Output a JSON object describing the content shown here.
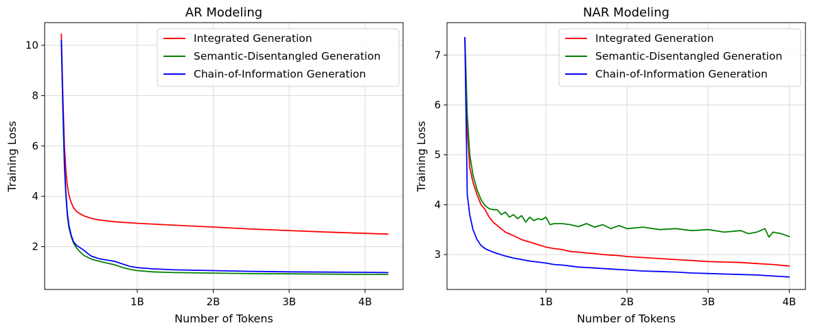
{
  "chart_data": [
    {
      "type": "line",
      "title": "AR Modeling",
      "xlabel": "Number of Tokens",
      "ylabel": "Training Loss",
      "xlim": [
        -0.22,
        4.5
      ],
      "ylim": [
        0.3,
        10.9
      ],
      "xticks": [
        1,
        2,
        3,
        4
      ],
      "xtick_labels": [
        "1B",
        "2B",
        "3B",
        "4B"
      ],
      "yticks": [
        2,
        4,
        6,
        8,
        10
      ],
      "ytick_labels": [
        "2",
        "4",
        "6",
        "8",
        "10"
      ],
      "grid": true,
      "legend_position": "top-right",
      "series": [
        {
          "name": "Integrated Generation",
          "color": "#ff0000",
          "x": [
            0.0,
            0.02,
            0.04,
            0.06,
            0.08,
            0.1,
            0.13,
            0.16,
            0.2,
            0.25,
            0.3,
            0.4,
            0.5,
            0.7,
            1.0,
            1.5,
            2.0,
            2.5,
            3.0,
            3.5,
            4.0,
            4.3
          ],
          "y": [
            10.45,
            8.0,
            6.0,
            5.0,
            4.4,
            4.05,
            3.75,
            3.55,
            3.4,
            3.3,
            3.22,
            3.12,
            3.06,
            2.99,
            2.93,
            2.85,
            2.78,
            2.7,
            2.64,
            2.58,
            2.53,
            2.5
          ]
        },
        {
          "name": "Semantic-Disentangled Generation",
          "color": "#008000",
          "x": [
            0.0,
            0.02,
            0.04,
            0.06,
            0.08,
            0.1,
            0.13,
            0.16,
            0.2,
            0.25,
            0.3,
            0.4,
            0.5,
            0.6,
            0.7,
            0.8,
            0.9,
            1.0,
            1.2,
            1.5,
            2.0,
            2.5,
            3.0,
            3.5,
            4.0,
            4.3
          ],
          "y": [
            10.2,
            7.5,
            5.2,
            4.0,
            3.2,
            2.75,
            2.4,
            2.15,
            1.95,
            1.78,
            1.65,
            1.5,
            1.42,
            1.35,
            1.28,
            1.18,
            1.1,
            1.05,
            1.0,
            0.97,
            0.95,
            0.93,
            0.92,
            0.91,
            0.9,
            0.9
          ]
        },
        {
          "name": "Chain-of-Information Generation",
          "color": "#0000ff",
          "x": [
            0.0,
            0.02,
            0.04,
            0.06,
            0.08,
            0.1,
            0.13,
            0.16,
            0.2,
            0.25,
            0.3,
            0.35,
            0.4,
            0.5,
            0.6,
            0.7,
            0.8,
            0.9,
            1.0,
            1.2,
            1.5,
            2.0,
            2.5,
            3.0,
            3.5,
            4.0,
            4.3
          ],
          "y": [
            10.2,
            7.8,
            5.4,
            4.1,
            3.3,
            2.85,
            2.45,
            2.2,
            2.05,
            1.95,
            1.85,
            1.72,
            1.62,
            1.52,
            1.47,
            1.42,
            1.32,
            1.22,
            1.17,
            1.12,
            1.08,
            1.05,
            1.02,
            1.0,
            0.99,
            0.98,
            0.97
          ]
        }
      ]
    },
    {
      "type": "line",
      "title": "NAR Modeling",
      "xlabel": "Number of Tokens",
      "ylabel": "Training Loss",
      "xlim": [
        -0.22,
        4.2
      ],
      "ylim": [
        2.3,
        7.65
      ],
      "xticks": [
        1,
        2,
        3,
        4
      ],
      "xtick_labels": [
        "1B",
        "2B",
        "3B",
        "4B"
      ],
      "yticks": [
        3,
        4,
        5,
        6,
        7
      ],
      "ytick_labels": [
        "3",
        "4",
        "5",
        "6",
        "7"
      ],
      "grid": true,
      "legend_position": "top-right",
      "series": [
        {
          "name": "Integrated Generation",
          "color": "#ff0000",
          "x": [
            0.0,
            0.03,
            0.06,
            0.1,
            0.15,
            0.2,
            0.25,
            0.3,
            0.35,
            0.4,
            0.5,
            0.6,
            0.7,
            0.8,
            0.9,
            1.0,
            1.1,
            1.2,
            1.3,
            1.4,
            1.5,
            1.6,
            1.7,
            1.8,
            1.9,
            2.0,
            2.2,
            2.4,
            2.6,
            2.8,
            3.0,
            3.2,
            3.4,
            3.6,
            3.8,
            4.0
          ],
          "y": [
            7.35,
            5.5,
            4.75,
            4.45,
            4.2,
            4.0,
            3.9,
            3.75,
            3.65,
            3.58,
            3.45,
            3.38,
            3.3,
            3.25,
            3.2,
            3.15,
            3.12,
            3.1,
            3.06,
            3.05,
            3.03,
            3.02,
            3.0,
            2.99,
            2.98,
            2.96,
            2.94,
            2.92,
            2.9,
            2.88,
            2.86,
            2.85,
            2.84,
            2.82,
            2.8,
            2.77
          ]
        },
        {
          "name": "Semantic-Disentangled Generation",
          "color": "#008000",
          "x": [
            0.0,
            0.03,
            0.06,
            0.1,
            0.15,
            0.2,
            0.25,
            0.3,
            0.35,
            0.4,
            0.45,
            0.5,
            0.55,
            0.6,
            0.65,
            0.7,
            0.75,
            0.8,
            0.85,
            0.9,
            0.95,
            1.0,
            1.05,
            1.1,
            1.2,
            1.3,
            1.4,
            1.5,
            1.6,
            1.7,
            1.8,
            1.9,
            2.0,
            2.2,
            2.4,
            2.6,
            2.8,
            3.0,
            3.2,
            3.4,
            3.5,
            3.6,
            3.7,
            3.75,
            3.8,
            3.9,
            4.0
          ],
          "y": [
            7.35,
            5.8,
            5.0,
            4.6,
            4.3,
            4.1,
            3.98,
            3.92,
            3.9,
            3.9,
            3.8,
            3.85,
            3.75,
            3.8,
            3.72,
            3.78,
            3.65,
            3.75,
            3.68,
            3.72,
            3.7,
            3.75,
            3.6,
            3.62,
            3.62,
            3.6,
            3.56,
            3.62,
            3.55,
            3.6,
            3.52,
            3.58,
            3.52,
            3.55,
            3.5,
            3.52,
            3.48,
            3.5,
            3.45,
            3.48,
            3.42,
            3.45,
            3.52,
            3.35,
            3.45,
            3.42,
            3.36
          ]
        },
        {
          "name": "Chain-of-Information Generation",
          "color": "#0000ff",
          "x": [
            0.0,
            0.03,
            0.06,
            0.1,
            0.15,
            0.2,
            0.25,
            0.3,
            0.35,
            0.4,
            0.5,
            0.6,
            0.7,
            0.8,
            0.9,
            1.0,
            1.1,
            1.2,
            1.3,
            1.4,
            1.5,
            1.6,
            1.7,
            1.8,
            1.9,
            2.0,
            2.2,
            2.4,
            2.6,
            2.8,
            3.0,
            3.2,
            3.4,
            3.6,
            3.8,
            4.0
          ],
          "y": [
            7.35,
            4.2,
            3.8,
            3.5,
            3.3,
            3.18,
            3.12,
            3.08,
            3.05,
            3.02,
            2.97,
            2.93,
            2.9,
            2.87,
            2.85,
            2.83,
            2.8,
            2.79,
            2.77,
            2.75,
            2.74,
            2.73,
            2.72,
            2.71,
            2.7,
            2.69,
            2.67,
            2.66,
            2.65,
            2.63,
            2.62,
            2.61,
            2.6,
            2.59,
            2.57,
            2.55
          ]
        }
      ]
    }
  ]
}
